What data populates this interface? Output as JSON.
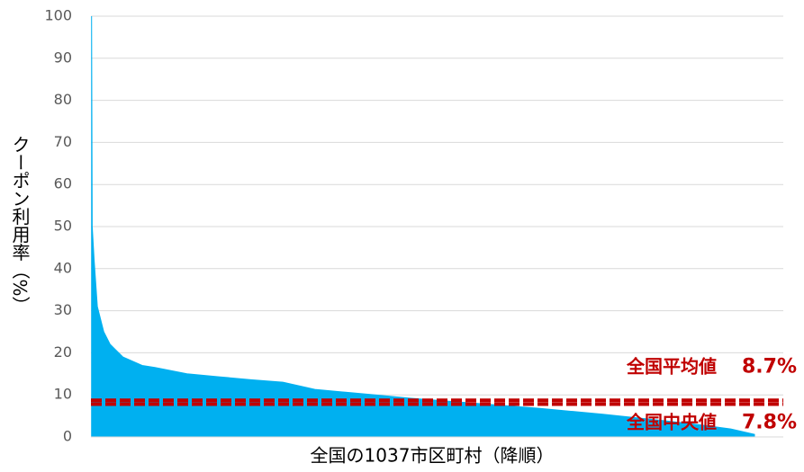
{
  "chart_data": {
    "type": "area",
    "x_label": "全国の1037市区町村（降順）",
    "y_label": "クーポン利用率（%）",
    "color": "#00b0f0",
    "x": [
      1,
      2,
      5,
      10,
      20,
      30,
      50,
      80,
      100,
      150,
      200,
      250,
      300,
      350,
      400,
      450,
      500,
      550,
      600,
      650,
      700,
      750,
      800,
      850,
      900,
      950,
      1000,
      1037
    ],
    "values": [
      100,
      50,
      42,
      31,
      25,
      22,
      19,
      17,
      16.5,
      15,
      14.3,
      13.6,
      13,
      11.3,
      10.6,
      9.9,
      9.2,
      8.6,
      8,
      7.4,
      6.8,
      6.1,
      5.4,
      4.6,
      3.8,
      2.9,
      1.9,
      0.6
    ],
    "xlim": [
      0,
      1037
    ],
    "ylim": [
      0,
      100
    ],
    "yticks": [
      0,
      10,
      20,
      30,
      40,
      50,
      60,
      70,
      80,
      90,
      100
    ],
    "grid": true,
    "reference_lines": [
      {
        "label": "全国平均値",
        "value": 8.7,
        "value_label": "8.7%",
        "color": "#c00000"
      },
      {
        "label": "全国中央値",
        "value": 7.8,
        "value_label": "7.8%",
        "color": "#c00000"
      }
    ]
  }
}
